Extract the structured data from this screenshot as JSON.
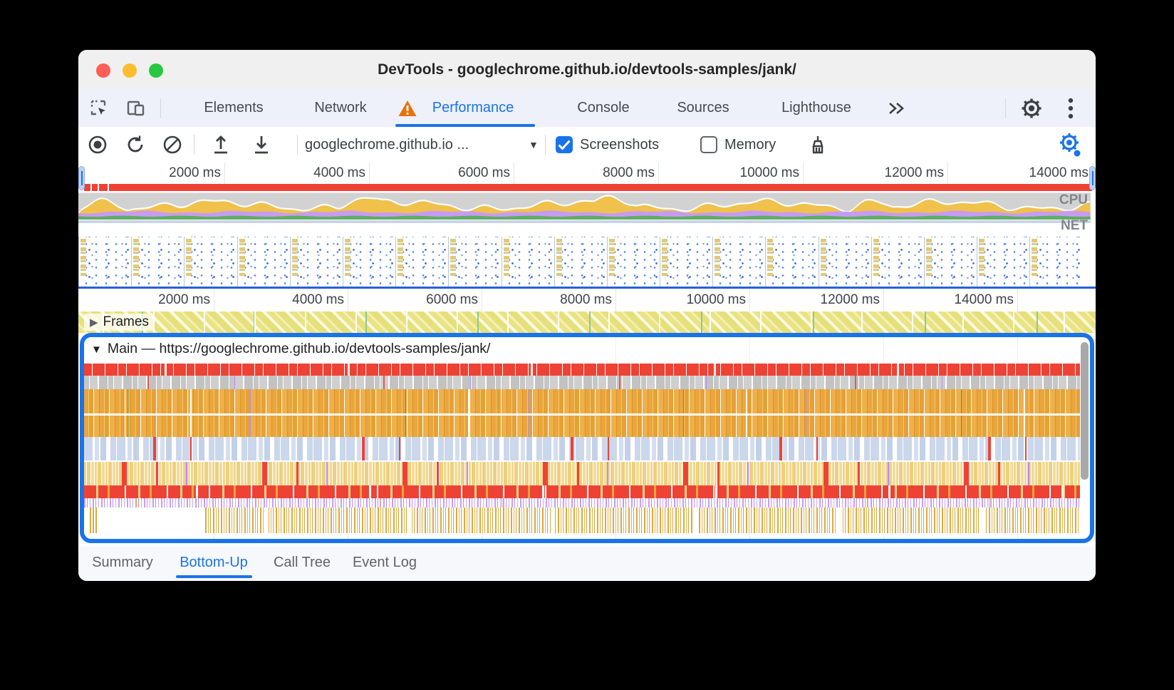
{
  "window": {
    "title": "DevTools - googlechrome.github.io/devtools-samples/jank/"
  },
  "tabbar": {
    "tabs": [
      {
        "label": "Elements",
        "active": false
      },
      {
        "label": "Network",
        "active": false
      },
      {
        "label": "Performance",
        "active": true,
        "warning": true
      },
      {
        "label": "Console",
        "active": false
      },
      {
        "label": "Sources",
        "active": false
      },
      {
        "label": "Lighthouse",
        "active": false
      }
    ],
    "more_label": "»"
  },
  "toolbar": {
    "origin_select": "googlechrome.github.io ...",
    "select_caret": "▼",
    "screenshots_label": "Screenshots",
    "screenshots_checked": true,
    "memory_label": "Memory",
    "memory_checked": false
  },
  "overview": {
    "ruler_labels": [
      "2000 ms",
      "4000 ms",
      "6000 ms",
      "8000 ms",
      "10000 ms",
      "12000 ms",
      "14000 ms"
    ],
    "cpu_label": "CPU",
    "net_label": "NET"
  },
  "lower": {
    "ruler_labels": [
      "2000 ms",
      "4000 ms",
      "6000 ms",
      "8000 ms",
      "10000 ms",
      "12000 ms",
      "14000 ms"
    ],
    "frames_label": "Frames",
    "frames_glyph": "▶",
    "main_collapse_glyph": "▼",
    "main_header": "Main — https://googlechrome.github.io/devtools-samples/jank/"
  },
  "bottom_tabs": [
    {
      "label": "Summary",
      "active": false
    },
    {
      "label": "Bottom-Up",
      "active": true
    },
    {
      "label": "Call Tree",
      "active": false
    },
    {
      "label": "Event Log",
      "active": false
    }
  ],
  "colors": {
    "accent": "#1a73e8",
    "warning": "#e8710a",
    "red": "#ee4235",
    "cpugray": "#d2d2d2",
    "cpuyellow": "#f0c14b",
    "cpupurple": "#c79bf2",
    "cpugreen": "#5fae63"
  }
}
